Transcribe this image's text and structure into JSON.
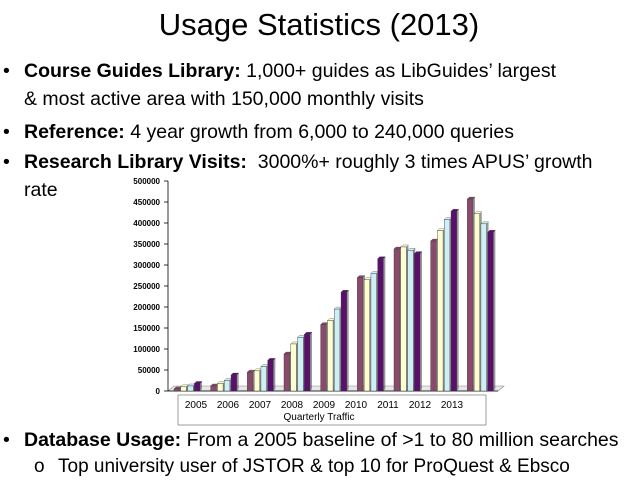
{
  "title": "Usage Statistics (2013)",
  "bullets": [
    {
      "marker": "•",
      "label": "Course Guides Library:",
      "text": " 1,000+ guides as LibGuides’ largest"
    },
    {
      "marker": "",
      "label": "",
      "text": "& most active area with 150,000 monthly visits"
    },
    {
      "marker": "•",
      "label": "Reference:",
      "text": " 4 year growth from 6,000 to 240,000 queries"
    },
    {
      "marker": "•",
      "label": "Research Library Visits:",
      "text": "  3000%+ roughly 3 times APUS’ growth"
    },
    {
      "marker": "",
      "label": "",
      "text": "rate"
    },
    {
      "marker": "•",
      "label": "Database Usage:",
      "text": " From a 2005 baseline of >1 to 80 million searches"
    }
  ],
  "subbullet": {
    "marker": "o",
    "text": "Top university user of JSTOR & top 10 for ProQuest & Ebsco"
  },
  "chart_data": {
    "type": "bar",
    "categories": [
      "2005",
      "2006",
      "2007",
      "2008",
      "2009",
      "2010",
      "2011",
      "2012",
      "2013"
    ],
    "xlabel": "Quarterly Traffic",
    "ylabel": "",
    "ylim": [
      0,
      500000
    ],
    "yticks": [
      "0",
      "50000",
      "100000",
      "150000",
      "200000",
      "250000",
      "300000",
      "350000",
      "400000",
      "450000",
      "500000"
    ],
    "series": [
      {
        "color": "#8b4a6b",
        "values": [
          5000,
          12000,
          45000,
          88000,
          158000,
          270000,
          338000,
          357000,
          457000
        ]
      },
      {
        "color": "#fdfdd0",
        "values": [
          10000,
          18000,
          48000,
          112000,
          168000,
          265000,
          343000,
          382000,
          422000
        ]
      },
      {
        "color": "#cfeff7",
        "values": [
          12000,
          25000,
          58000,
          128000,
          195000,
          280000,
          335000,
          408000,
          398000
        ]
      },
      {
        "color": "#5a0f6f",
        "values": [
          18000,
          38000,
          73000,
          135000,
          235000,
          315000,
          327000,
          428000,
          378000
        ]
      }
    ],
    "grid": false,
    "legend": "none"
  }
}
